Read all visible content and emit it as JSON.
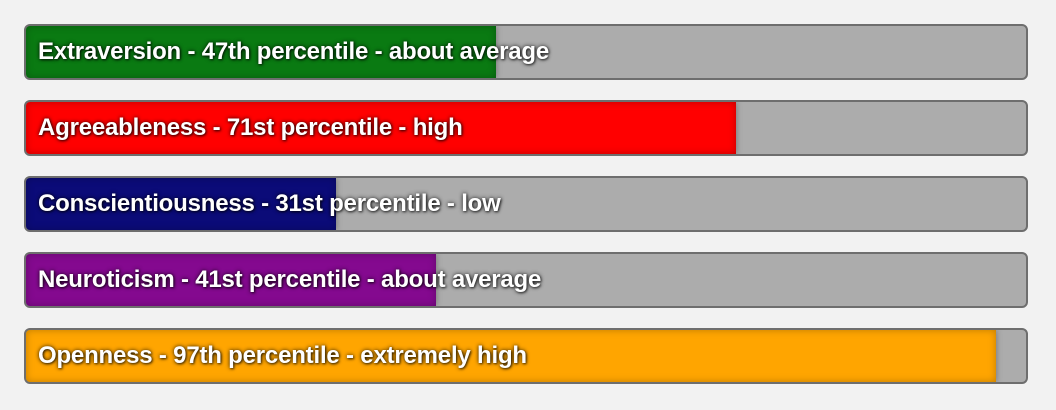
{
  "traits": [
    {
      "label": "Extraversion - 47th percentile - about average",
      "percentile": 47,
      "color": "#0a7a12"
    },
    {
      "label": "Agreeableness - 71st percentile - high",
      "percentile": 71,
      "color": "#ff0000"
    },
    {
      "label": "Conscientiousness - 31st percentile - low",
      "percentile": 31,
      "color": "#0b0b78"
    },
    {
      "label": "Neuroticism - 41st percentile - about average",
      "percentile": 41,
      "color": "#84098f"
    },
    {
      "label": "Openness - 97th percentile - extremely high",
      "percentile": 97,
      "color": "#ffa500"
    }
  ]
}
